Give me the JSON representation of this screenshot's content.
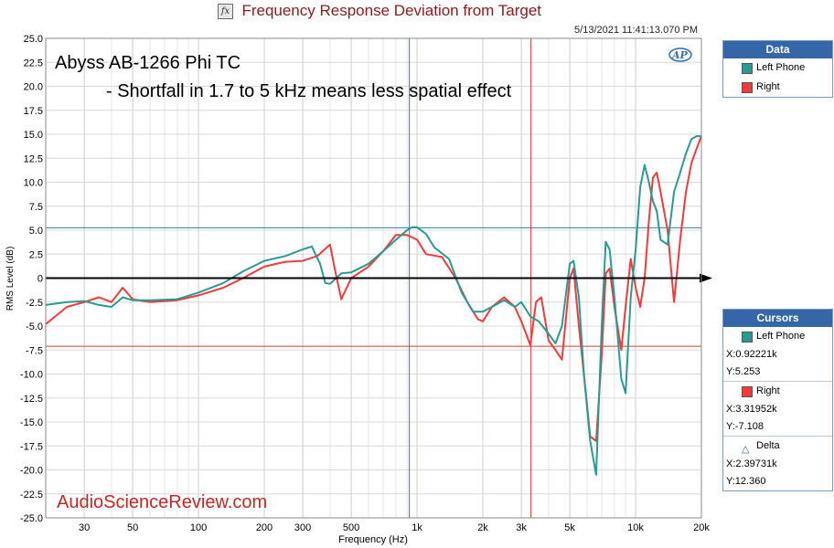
{
  "window": {
    "title": "Frequency Response Deviation from Target",
    "timestamp": "5/13/2021 11:41:13.070 PM",
    "ap_logo": "AP"
  },
  "annotations": {
    "line1": "Abyss AB-1266 Phi TC",
    "line2": "- Shortfall in 1.7 to 5 kHz means less spatial effect",
    "watermark": "AudioScienceReview.com"
  },
  "data_panel": {
    "header": "Data",
    "items": [
      {
        "label": "Left Phone",
        "color": "#2a9a93"
      },
      {
        "label": "Right",
        "color": "#ef3b3b"
      }
    ]
  },
  "cursors_panel": {
    "header": "Cursors",
    "left": {
      "label": "Left Phone",
      "x": "X:0.92221k",
      "y": "Y:5.253"
    },
    "right": {
      "label": "Right",
      "x": "X:3.31952k",
      "y": "Y:-7.108"
    },
    "delta": {
      "label": "Delta",
      "x": "X:2.39731k",
      "y": "Y:12.360"
    }
  },
  "chart_data": {
    "type": "line",
    "title": "Frequency Response Deviation from Target",
    "xlabel": "Frequency (Hz)",
    "ylabel": "RMS Level (dB)",
    "x_scale": "log",
    "xlim": [
      20,
      20000
    ],
    "ylim": [
      -25,
      25
    ],
    "x_ticks": [
      30,
      50,
      100,
      200,
      300,
      500,
      1000,
      2000,
      3000,
      5000,
      10000,
      20000
    ],
    "x_tick_labels": [
      "30",
      "50",
      "100",
      "200",
      "300",
      "500",
      "1k",
      "2k",
      "3k",
      "5k",
      "10k",
      "20k"
    ],
    "y_ticks": [
      25,
      22.5,
      20,
      17.5,
      15,
      12.5,
      10,
      7.5,
      5,
      2.5,
      0,
      -2.5,
      -5,
      -7.5,
      -10,
      -12.5,
      -15,
      -17.5,
      -20,
      -22.5,
      -25
    ],
    "y_tick_labels": [
      "25.0",
      "22.5",
      "20.0",
      "17.5",
      "15.0",
      "12.5",
      "10.0",
      "7.5",
      "5.0",
      "2.5",
      "0",
      "-2.5",
      "-5.0",
      "-7.5",
      "-10.0",
      "-12.5",
      "-15.0",
      "-17.5",
      "-20.0",
      "-22.5",
      "-25.0"
    ],
    "grid": true,
    "series": [
      {
        "name": "Left Phone",
        "color": "#2a9a93",
        "x": [
          20,
          25,
          30,
          35,
          40,
          45,
          50,
          60,
          80,
          100,
          130,
          160,
          200,
          250,
          300,
          330,
          360,
          380,
          400,
          450,
          500,
          600,
          700,
          800,
          900,
          950,
          1000,
          1100,
          1200,
          1400,
          1600,
          1800,
          2000,
          2200,
          2500,
          2800,
          3000,
          3300,
          3600,
          4000,
          4300,
          4600,
          5000,
          5200,
          5500,
          5800,
          6200,
          6600,
          7000,
          7300,
          7600,
          8000,
          8600,
          9000,
          9500,
          10000,
          10500,
          11000,
          11500,
          12000,
          12500,
          13000,
          14000,
          15000,
          16000,
          17000,
          18000,
          19000,
          20000
        ],
        "y": [
          -2.8,
          -2.5,
          -2.4,
          -2.8,
          -3.0,
          -2.0,
          -2.3,
          -2.3,
          -2.2,
          -1.5,
          -0.5,
          0.7,
          1.8,
          2.3,
          3.0,
          3.3,
          1.5,
          -0.5,
          -0.6,
          0.5,
          0.6,
          1.5,
          2.8,
          4.0,
          5.0,
          5.3,
          5.3,
          4.6,
          3.2,
          2.0,
          -1.5,
          -3.5,
          -3.5,
          -3.0,
          -2.3,
          -3.0,
          -2.5,
          -4.0,
          -4.5,
          -5.8,
          -6.8,
          -5.0,
          1.5,
          1.8,
          -2.0,
          -10.0,
          -17.0,
          -20.5,
          -5.0,
          3.8,
          3.0,
          -2.0,
          -10.5,
          -12.0,
          -2.0,
          3.0,
          9.5,
          11.8,
          10.0,
          8.0,
          7.0,
          4.0,
          3.5,
          9.0,
          11.0,
          13.0,
          14.5,
          14.8,
          14.8
        ]
      },
      {
        "name": "Right",
        "color": "#ef3b3b",
        "x": [
          20,
          25,
          30,
          35,
          40,
          45,
          50,
          60,
          80,
          100,
          130,
          160,
          200,
          250,
          300,
          350,
          400,
          420,
          450,
          500,
          600,
          700,
          800,
          900,
          1000,
          1100,
          1300,
          1500,
          1700,
          1900,
          2000,
          2200,
          2500,
          2800,
          3000,
          3300,
          3500,
          3700,
          4000,
          4300,
          4600,
          5000,
          5200,
          5500,
          5800,
          6200,
          6600,
          7000,
          7300,
          7600,
          8000,
          8600,
          9000,
          9500,
          10000,
          10500,
          11000,
          11500,
          12000,
          12500,
          13000,
          14000,
          15000,
          16000,
          17000,
          18000,
          19000,
          20000
        ],
        "y": [
          -4.8,
          -3.0,
          -2.5,
          -2.0,
          -2.5,
          -1.0,
          -2.2,
          -2.5,
          -2.3,
          -1.8,
          -1.0,
          0.0,
          1.2,
          1.7,
          1.8,
          2.3,
          3.5,
          1.0,
          -2.2,
          0.0,
          1.2,
          2.8,
          4.5,
          4.5,
          4.0,
          2.5,
          2.2,
          0.0,
          -2.5,
          -4.3,
          -4.5,
          -3.0,
          -2.0,
          -3.0,
          -4.5,
          -7.0,
          -2.5,
          -2.0,
          -6.5,
          -7.5,
          -8.5,
          0.0,
          1.0,
          -5.0,
          -10.0,
          -16.5,
          -17.0,
          -8.0,
          0.5,
          1.0,
          -3.0,
          -7.5,
          -3.0,
          2.0,
          -1.0,
          -3.0,
          0.0,
          6.0,
          10.5,
          11.0,
          9.0,
          5.0,
          -2.5,
          4.0,
          9.0,
          12.0,
          13.5,
          14.8
        ]
      }
    ],
    "cursors": [
      {
        "name": "Left Phone",
        "x": 922.21,
        "y": 5.253,
        "color": "#2a7fa8"
      },
      {
        "name": "Right",
        "x": 3319.52,
        "y": -7.108,
        "color": "#d43c3c"
      }
    ],
    "zero_axis_arrow": true
  }
}
